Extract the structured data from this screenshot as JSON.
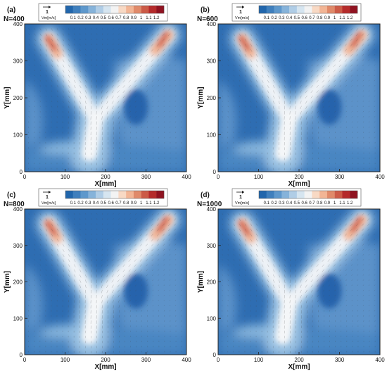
{
  "panels": [
    {
      "letter": "(a)",
      "n_label": "N=400"
    },
    {
      "letter": "(b)",
      "n_label": "N=600"
    },
    {
      "letter": "(c)",
      "n_label": "N=800"
    },
    {
      "letter": "(d)",
      "n_label": "N=1000"
    }
  ],
  "legend": {
    "vector_symbol": "1",
    "unit_label": "Vm[m/s]",
    "tick_labels": [
      "0.1",
      "0.2",
      "0.3",
      "0.4",
      "0.5",
      "0.6",
      "0.7",
      "0.8",
      "0.9",
      "1",
      "1.1",
      "1.2"
    ],
    "colors": [
      "#2166ac",
      "#3f7fbd",
      "#5e98cc",
      "#86b3da",
      "#b0cde6",
      "#d6e5f0",
      "#f3f3f3",
      "#f8d9c4",
      "#f2b595",
      "#e08a6a",
      "#cc5b47",
      "#b52b2b",
      "#8f1220"
    ]
  },
  "colors": {
    "field_low": "#2e6db2",
    "field_mid": "#9cc3e3",
    "field_high": "#cf5a45",
    "arrow": "#444444"
  },
  "chart_data": {
    "type": "heatmap",
    "panel_count": 4,
    "xlabel": "X[mm]",
    "ylabel": "Y[mm]",
    "xlim": [
      0,
      400
    ],
    "ylim": [
      0,
      400
    ],
    "xticks": [
      0,
      100,
      200,
      300,
      400
    ],
    "yticks": [
      0,
      100,
      200,
      300,
      400
    ],
    "colorbar_range": [
      0.1,
      1.2
    ],
    "field_features": [
      {
        "kind": "jet",
        "from": [
          60,
          360
        ],
        "to": [
          175,
          140
        ],
        "peak_vm": 1.05
      },
      {
        "kind": "jet",
        "from": [
          355,
          370
        ],
        "to": [
          175,
          140
        ],
        "peak_vm": 0.95
      },
      {
        "kind": "stem",
        "from": [
          175,
          140
        ],
        "to": [
          160,
          40
        ],
        "vm": 0.6
      },
      {
        "kind": "vortex",
        "center": [
          275,
          175
        ],
        "vm": 0.1
      }
    ]
  }
}
